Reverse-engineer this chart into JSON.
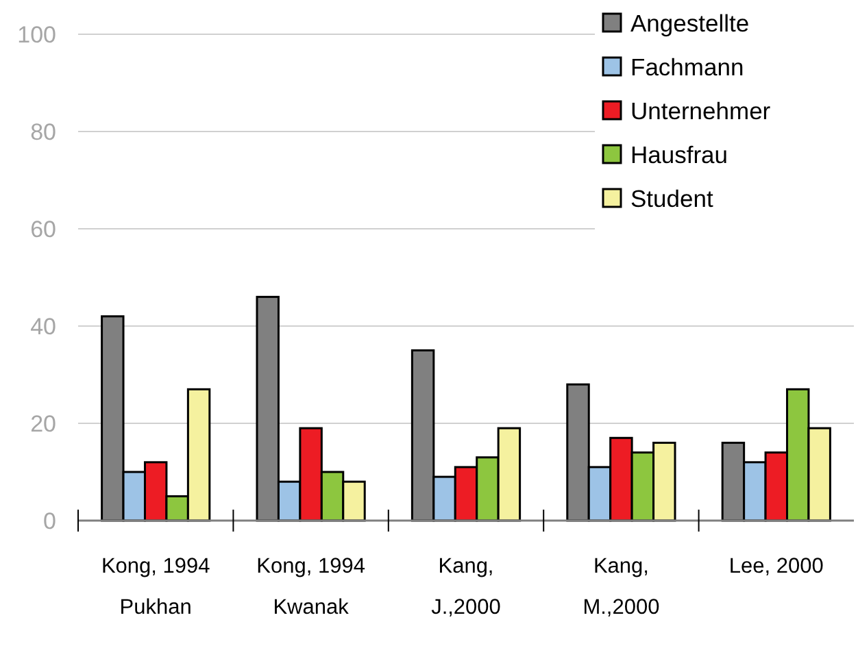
{
  "chart_data": {
    "type": "bar",
    "categories": [
      "Kong, 1994\nPukhan",
      "Kong, 1994\nKwanak",
      "Kang,\nJ.,2000",
      "Kang,\nM.,2000",
      "Lee, 2000"
    ],
    "series": [
      {
        "name": "Angestellte",
        "color": "#808080",
        "values": [
          42,
          46,
          35,
          28,
          16
        ]
      },
      {
        "name": "Fachmann",
        "color": "#9dc3e6",
        "values": [
          10,
          8,
          9,
          11,
          12
        ]
      },
      {
        "name": "Unternehmer",
        "color": "#ed1c24",
        "values": [
          12,
          19,
          11,
          17,
          14
        ]
      },
      {
        "name": "Hausfrau",
        "color": "#8dc63f",
        "values": [
          5,
          10,
          13,
          14,
          27
        ]
      },
      {
        "name": "Student",
        "color": "#f5f19f",
        "values": [
          27,
          8,
          19,
          16,
          19
        ]
      }
    ],
    "ylim": [
      0,
      100
    ],
    "yticks": [
      0,
      20,
      40,
      60,
      80,
      100
    ],
    "grid": "y",
    "legend": "top right"
  }
}
